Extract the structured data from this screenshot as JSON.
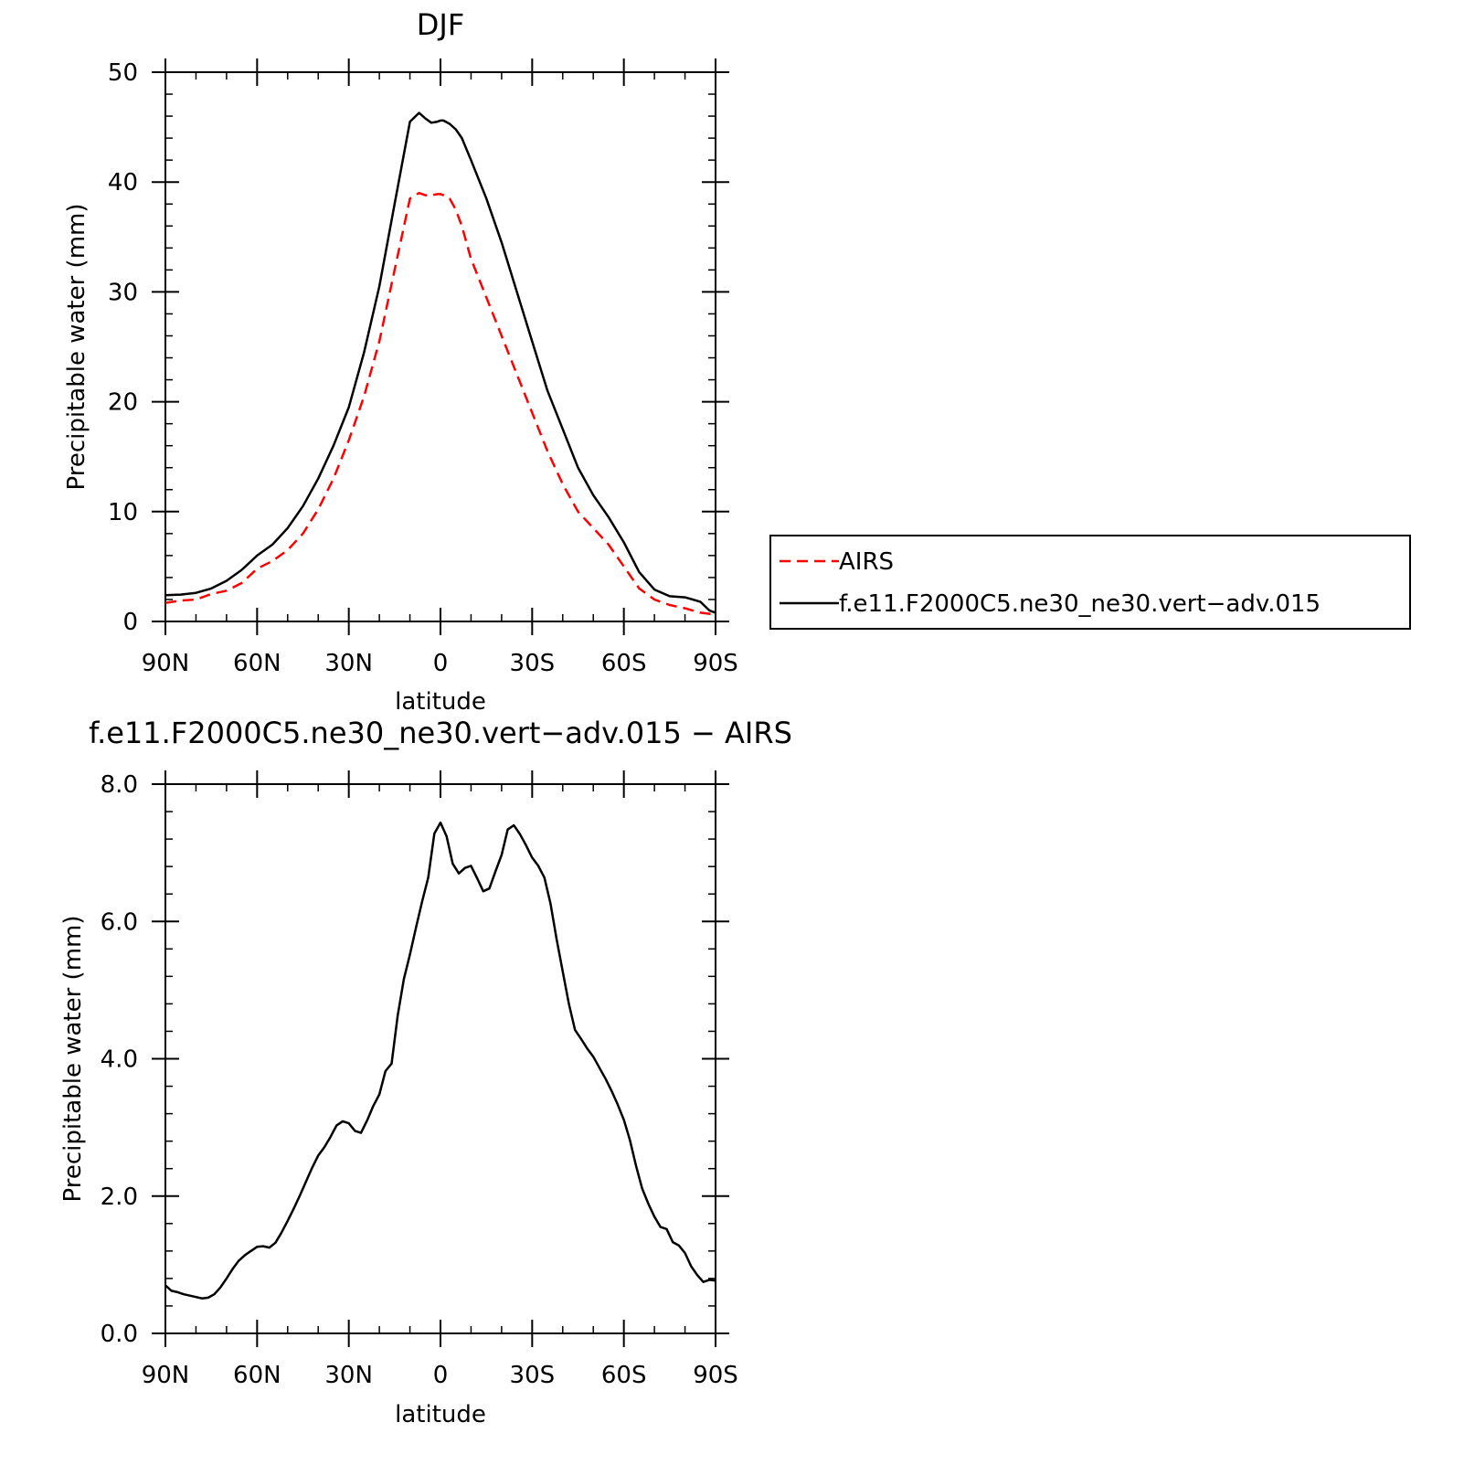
{
  "chart_data": [
    {
      "type": "line",
      "title": "DJF",
      "xlabel": "latitude",
      "ylabel": "Precipitable water (mm)",
      "x_ticks": [
        90,
        60,
        30,
        0,
        -30,
        -60,
        -90
      ],
      "x_tick_labels": [
        "90N",
        "60N",
        "30N",
        "0",
        "30S",
        "60S",
        "90S"
      ],
      "xlim": [
        90,
        -90
      ],
      "ylim": [
        0,
        50
      ],
      "y_ticks": [
        0,
        10,
        20,
        30,
        40,
        50
      ],
      "y_tick_labels": [
        "0",
        "10",
        "20",
        "30",
        "40",
        "50"
      ],
      "grid": false,
      "legend": "right-of-plot",
      "x": [
        90,
        85,
        80,
        75,
        70,
        65,
        60,
        55,
        50,
        45,
        40,
        35,
        30,
        25,
        20,
        15,
        10,
        7,
        5,
        3,
        1,
        0,
        -1,
        -3,
        -5,
        -7,
        -10,
        -15,
        -20,
        -25,
        -30,
        -35,
        -40,
        -45,
        -50,
        -55,
        -60,
        -65,
        -70,
        -75,
        -80,
        -85,
        -88,
        -90
      ],
      "series": [
        {
          "name": "AIRS",
          "color": "#ff0000",
          "dash": "dashed",
          "values": [
            1.7,
            1.9,
            2.0,
            2.5,
            2.8,
            3.5,
            4.8,
            5.5,
            6.5,
            8.0,
            10.2,
            13.0,
            16.5,
            20.5,
            25.5,
            32.0,
            38.5,
            39.0,
            38.8,
            38.8,
            38.9,
            38.9,
            38.8,
            38.5,
            37.5,
            36.0,
            33.0,
            29.5,
            26.0,
            22.5,
            19.0,
            15.5,
            12.5,
            10.0,
            8.5,
            7.0,
            5.0,
            3.0,
            2.0,
            1.5,
            1.2,
            0.8,
            0.7,
            0.6
          ]
        },
        {
          "name": "f.e11.F2000C5.ne30_ne30.vert−adv.015",
          "color": "#000000",
          "dash": "solid",
          "values": [
            2.4,
            2.45,
            2.6,
            3.0,
            3.7,
            4.7,
            6.0,
            7.0,
            8.5,
            10.5,
            13.0,
            16.0,
            19.5,
            24.5,
            30.5,
            38.0,
            45.5,
            46.3,
            45.8,
            45.4,
            45.5,
            45.6,
            45.6,
            45.3,
            44.8,
            44.0,
            42.0,
            38.5,
            34.5,
            30.0,
            25.5,
            21.0,
            17.5,
            14.0,
            11.5,
            9.5,
            7.2,
            4.5,
            2.9,
            2.3,
            2.2,
            1.8,
            1.0,
            0.8
          ]
        }
      ]
    },
    {
      "type": "line",
      "title": "f.e11.F2000C5.ne30_ne30.vert−adv.015  −  AIRS",
      "xlabel": "latitude",
      "ylabel": "Precipitable water (mm)",
      "x_ticks": [
        90,
        60,
        30,
        0,
        -30,
        -60,
        -90
      ],
      "x_tick_labels": [
        "90N",
        "60N",
        "30N",
        "0",
        "30S",
        "60S",
        "90S"
      ],
      "xlim": [
        90,
        -90
      ],
      "ylim": [
        0,
        8
      ],
      "y_ticks": [
        0,
        2,
        4,
        6,
        8
      ],
      "y_tick_labels": [
        "0.0",
        "2.0",
        "4.0",
        "6.0",
        "8.0"
      ],
      "grid": false,
      "x": [
        90,
        88,
        86,
        84,
        82,
        80,
        78,
        76,
        74,
        72,
        70,
        68,
        66,
        64,
        62,
        60,
        58,
        56,
        54,
        52,
        50,
        48,
        46,
        44,
        42,
        40,
        38,
        36,
        34,
        32,
        30,
        28,
        26,
        24,
        22,
        20,
        18,
        16,
        14,
        12,
        10,
        8,
        6,
        4,
        2,
        0,
        -2,
        -4,
        -6,
        -8,
        -10,
        -12,
        -14,
        -16,
        -18,
        -20,
        -22,
        -24,
        -26,
        -28,
        -30,
        -32,
        -34,
        -36,
        -38,
        -40,
        -42,
        -44,
        -46,
        -48,
        -50,
        -52,
        -54,
        -56,
        -58,
        -60,
        -62,
        -64,
        -66,
        -68,
        -70,
        -72,
        -74,
        -76,
        -78,
        -80,
        -82,
        -84,
        -86,
        -88,
        -90
      ],
      "series": [
        {
          "name": "",
          "color": "#000000",
          "dash": "solid",
          "values": [
            0.7,
            0.62,
            0.6,
            0.57,
            0.55,
            0.53,
            0.51,
            0.52,
            0.57,
            0.67,
            0.8,
            0.94,
            1.06,
            1.14,
            1.2,
            1.26,
            1.27,
            1.25,
            1.32,
            1.47,
            1.64,
            1.82,
            2.01,
            2.21,
            2.41,
            2.59,
            2.71,
            2.86,
            3.03,
            3.09,
            3.06,
            2.95,
            2.92,
            3.1,
            3.31,
            3.48,
            3.82,
            3.93,
            4.63,
            5.16,
            5.52,
            5.91,
            6.29,
            6.64,
            7.28,
            7.44,
            7.24,
            6.84,
            6.7,
            6.78,
            6.81,
            6.63,
            6.44,
            6.48,
            6.73,
            6.97,
            7.34,
            7.4,
            7.27,
            7.11,
            6.93,
            6.81,
            6.64,
            6.26,
            5.74,
            5.27,
            4.8,
            4.42,
            4.29,
            4.15,
            4.03,
            3.87,
            3.71,
            3.53,
            3.33,
            3.11,
            2.81,
            2.44,
            2.11,
            1.89,
            1.7,
            1.55,
            1.52,
            1.33,
            1.28,
            1.17,
            0.98,
            0.85,
            0.75,
            0.78,
            0.77
          ]
        }
      ]
    }
  ]
}
